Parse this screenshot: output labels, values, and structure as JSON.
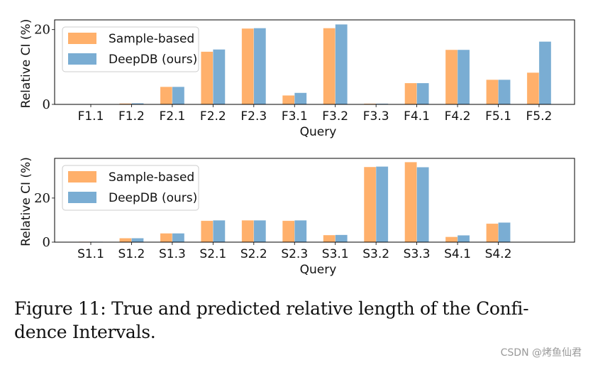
{
  "chart_data": [
    {
      "type": "bar",
      "xlabel": "Query",
      "ylabel": "Relative CI (%)",
      "ylim": [
        0,
        22.6
      ],
      "yticks": [
        "0",
        "20"
      ],
      "grid": false,
      "legend_position": "upper-left",
      "categories": [
        "F1.1",
        "F1.2",
        "F2.1",
        "F2.2",
        "F2.3",
        "F3.1",
        "F3.2",
        "F3.3",
        "F4.1",
        "F4.2",
        "F5.1",
        "F5.2"
      ],
      "series": [
        {
          "name": "Sample-based",
          "color": "#ffb06b",
          "values": [
            0.05,
            0.25,
            4.7,
            14.1,
            20.3,
            2.4,
            20.4,
            0.2,
            5.7,
            14.6,
            6.6,
            8.5
          ]
        },
        {
          "name": "DeepDB (ours)",
          "color": "#7aadd3",
          "values": [
            0.05,
            0.3,
            4.7,
            14.7,
            20.4,
            3.1,
            21.4,
            0.2,
            5.7,
            14.6,
            6.6,
            16.8
          ]
        }
      ]
    },
    {
      "type": "bar",
      "xlabel": "Query",
      "ylabel": "Relative CI (%)",
      "ylim": [
        0,
        38
      ],
      "yticks": [
        "0",
        "20"
      ],
      "grid": false,
      "legend_position": "upper-left",
      "categories": [
        "S1.1",
        "S1.2",
        "S1.3",
        "S2.1",
        "S2.2",
        "S2.3",
        "S3.1",
        "S3.2",
        "S3.3",
        "S4.1",
        "S4.2"
      ],
      "series": [
        {
          "name": "Sample-based",
          "color": "#ffb06b",
          "values": [
            0.2,
            1.8,
            4.0,
            9.7,
            9.9,
            9.7,
            3.2,
            34.1,
            36.3,
            2.4,
            8.4
          ]
        },
        {
          "name": "DeepDB (ours)",
          "color": "#7aadd3",
          "values": [
            0.2,
            1.8,
            4.0,
            9.9,
            9.9,
            9.9,
            3.3,
            34.3,
            34.0,
            3.1,
            8.9
          ]
        }
      ]
    }
  ],
  "caption": {
    "line1": "Figure 11: True and predicted relative length of the Confi-",
    "line2": "dence Intervals."
  },
  "watermark": "CSDN @烤鱼仙君"
}
